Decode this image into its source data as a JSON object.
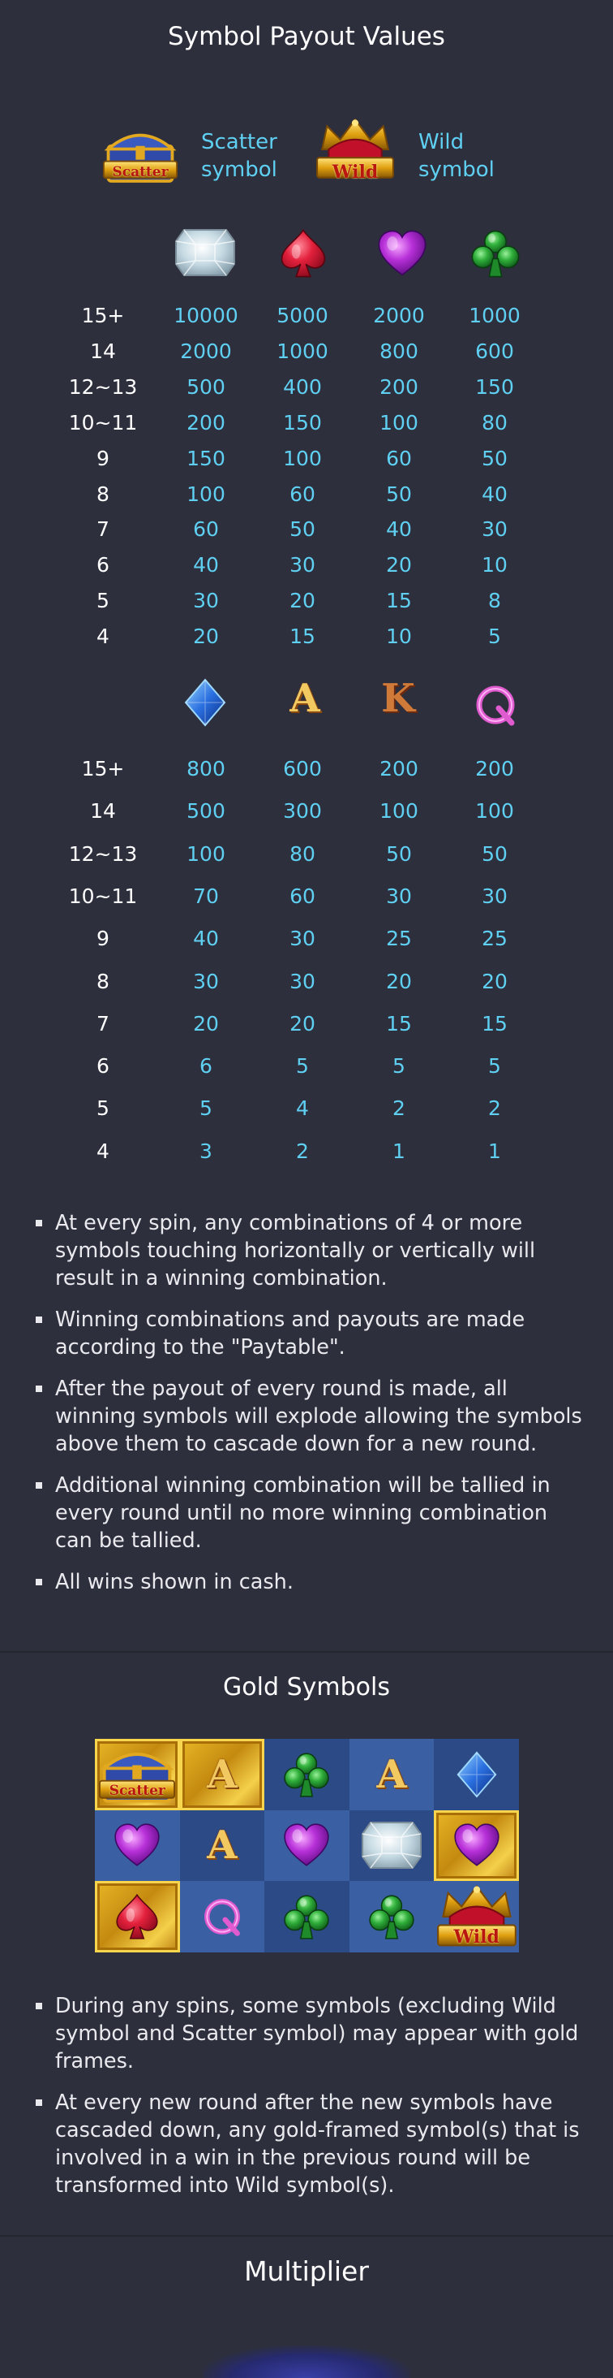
{
  "sections": {
    "payout_title": "Symbol Payout Values",
    "gold_title": "Gold Symbols",
    "multiplier_title": "Multiplier"
  },
  "specials": {
    "scatter": {
      "badge": "Scatter",
      "label": "Scatter symbol"
    },
    "wild": {
      "badge": "Wild",
      "label": "Wild symbol"
    }
  },
  "table1": {
    "symbols": [
      "diamond-gem-icon",
      "red-spade-icon",
      "purple-heart-icon",
      "green-club-icon"
    ],
    "rows": [
      {
        "label": "15+",
        "values": [
          "10000",
          "5000",
          "2000",
          "1000"
        ]
      },
      {
        "label": "14",
        "values": [
          "2000",
          "1000",
          "800",
          "600"
        ]
      },
      {
        "label": "12~13",
        "values": [
          "500",
          "400",
          "200",
          "150"
        ]
      },
      {
        "label": "10~11",
        "values": [
          "200",
          "150",
          "100",
          "80"
        ]
      },
      {
        "label": "9",
        "values": [
          "150",
          "100",
          "60",
          "50"
        ]
      },
      {
        "label": "8",
        "values": [
          "100",
          "60",
          "50",
          "40"
        ]
      },
      {
        "label": "7",
        "values": [
          "60",
          "50",
          "40",
          "30"
        ]
      },
      {
        "label": "6",
        "values": [
          "40",
          "30",
          "20",
          "10"
        ]
      },
      {
        "label": "5",
        "values": [
          "30",
          "20",
          "15",
          "8"
        ]
      },
      {
        "label": "4",
        "values": [
          "20",
          "15",
          "10",
          "5"
        ]
      }
    ]
  },
  "table2": {
    "symbols": [
      "blue-diamond-icon",
      "letter-a-icon",
      "letter-k-icon",
      "letter-q-icon"
    ],
    "glyphs": {
      "a": "A",
      "k": "K",
      "q": "Q"
    },
    "rows": [
      {
        "label": "15+",
        "values": [
          "800",
          "600",
          "200",
          "200"
        ]
      },
      {
        "label": "14",
        "values": [
          "500",
          "300",
          "100",
          "100"
        ]
      },
      {
        "label": "12~13",
        "values": [
          "100",
          "80",
          "50",
          "50"
        ]
      },
      {
        "label": "10~11",
        "values": [
          "70",
          "60",
          "30",
          "30"
        ]
      },
      {
        "label": "9",
        "values": [
          "40",
          "30",
          "25",
          "25"
        ]
      },
      {
        "label": "8",
        "values": [
          "30",
          "30",
          "20",
          "20"
        ]
      },
      {
        "label": "7",
        "values": [
          "20",
          "20",
          "15",
          "15"
        ]
      },
      {
        "label": "6",
        "values": [
          "6",
          "5",
          "5",
          "5"
        ]
      },
      {
        "label": "5",
        "values": [
          "5",
          "4",
          "2",
          "2"
        ]
      },
      {
        "label": "4",
        "values": [
          "3",
          "2",
          "1",
          "1"
        ]
      }
    ]
  },
  "rules": [
    "At every spin, any combinations of 4 or more symbols touching horizontally or vertically will result in a winning combination.",
    "Winning combinations and payouts are made according to the \"Paytable\".",
    "After the payout of every round is made, all winning symbols will explode allowing the symbols above them to cascade down for a new round.",
    "Additional winning combination will be tallied in every round until no more winning combination can be tallied.",
    "All wins shown in cash."
  ],
  "gold_rules": [
    "During any spins, some symbols (excluding Wild symbol and Scatter symbol) may appear with gold frames.",
    "At every new round after the new symbols have cascaded down, any gold-framed symbol(s) that is involved in a win in the previous round will be transformed into Wild symbol(s)."
  ],
  "colors": {
    "background": "#2d2f3d",
    "accent": "#5fd0f2",
    "text": "#ffffff",
    "gold": "#e9b826"
  }
}
